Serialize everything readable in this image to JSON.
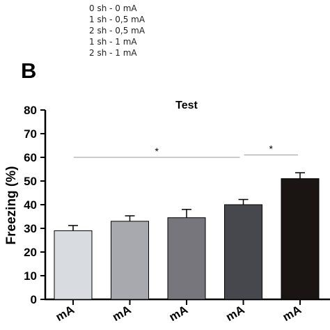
{
  "legend": [
    "0 sh - 0 mA",
    "1 sh - 0,5 mA",
    "2 sh - 0,5 mA",
    "1 sh - 1 mA",
    "2 sh - 1 mA"
  ],
  "panel_label": "B",
  "chart_data": {
    "type": "bar",
    "title": "Test",
    "ylabel": "Freezing (%)",
    "xlabel": "",
    "ylim": [
      0,
      80
    ],
    "yticks": [
      0,
      10,
      20,
      30,
      40,
      50,
      60,
      70,
      80
    ],
    "categories": [
      "mA",
      "mA",
      "mA",
      "mA",
      "mA"
    ],
    "values": [
      29,
      33,
      34.5,
      40,
      51
    ],
    "errors": [
      2.2,
      2.3,
      3.5,
      2.2,
      2.5
    ],
    "colors": [
      "#d8dce0",
      "#a8a9ae",
      "#76767c",
      "#47484d",
      "#1a1512"
    ],
    "significance": [
      {
        "from": 0,
        "to": 3,
        "label": "*",
        "y": 60
      },
      {
        "from": 3,
        "to": 4,
        "label": "*",
        "y": 61
      }
    ],
    "grid": false,
    "legend_position": "top-left"
  }
}
